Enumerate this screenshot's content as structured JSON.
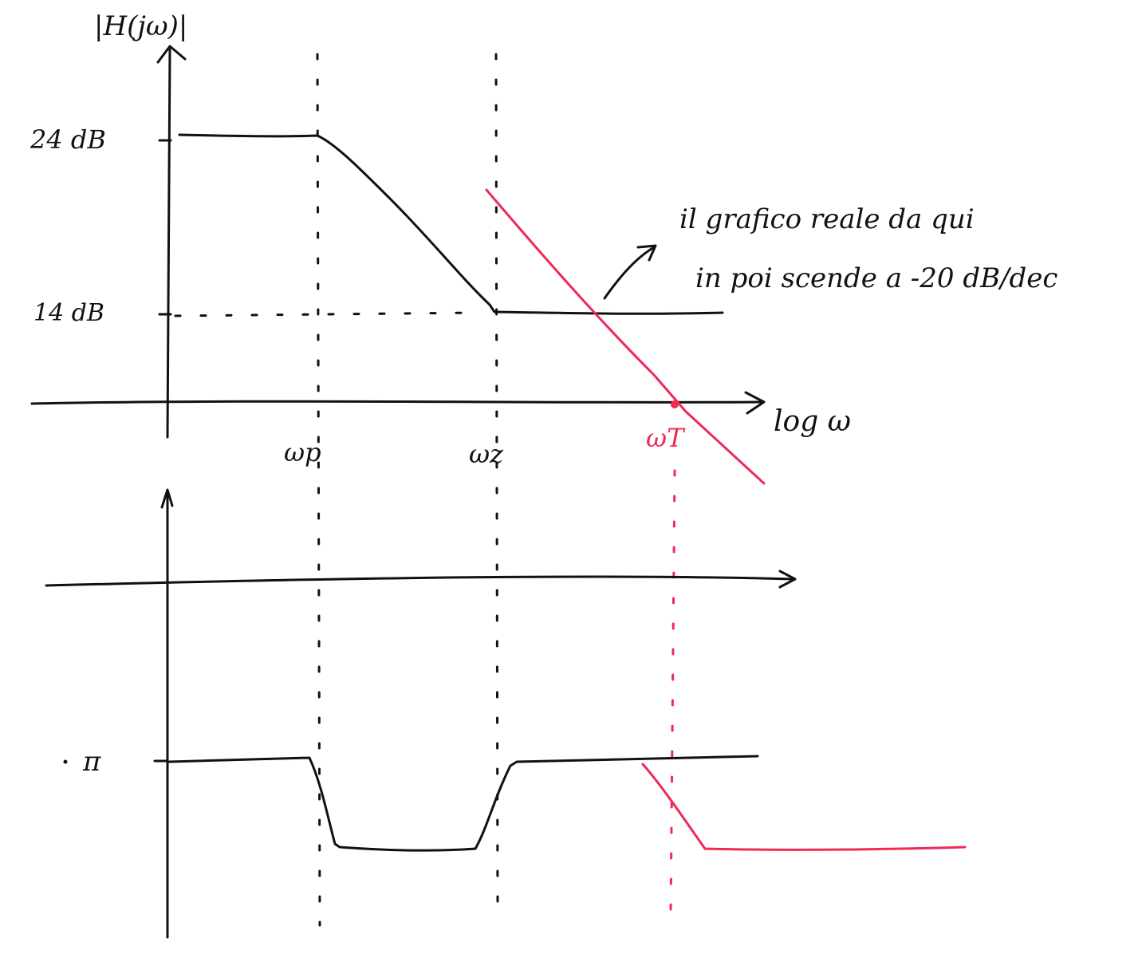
{
  "magnitude_plot": {
    "y_axis_label": "|H(jω)|",
    "x_axis_label": "log ω",
    "level_high": "24 dB",
    "level_low": "14 dB",
    "freq_pole": "ωp",
    "freq_zero": "ωz",
    "freq_transition": "ωT"
  },
  "annotation": {
    "line1": "il grafico reale da qui",
    "line2": "in poi scende a -20 dB/dec"
  },
  "phase_plot": {
    "level_label": "π"
  },
  "colors": {
    "ink": "#111111",
    "highlight": "#ee2a55"
  }
}
